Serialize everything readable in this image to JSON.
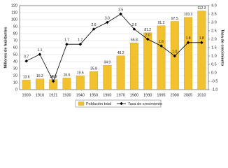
{
  "chart_data": {
    "type": "bar-line",
    "categories": [
      "1900",
      "1910",
      "1921",
      "1930",
      "1940",
      "1950",
      "1960",
      "1970",
      "1980",
      "1990",
      "1995",
      "2000",
      "2005",
      "2010"
    ],
    "series": [
      {
        "name": "Población total",
        "color": "#f2c12e",
        "values": [
          13.6,
          15.2,
          14.3,
          16.6,
          19.6,
          25.8,
          34.9,
          48.2,
          66.8,
          81.2,
          91.2,
          97.5,
          103.3,
          112.3
        ]
      },
      {
        "name": "Tasa de crecimiento",
        "color": "#000000",
        "axis": "y2",
        "values": [
          0.7,
          1.1,
          -0.5,
          1.7,
          1.7,
          2.6,
          3.0,
          3.5,
          2.6,
          2.0,
          1.6,
          1.0,
          1.8,
          1.8
        ],
        "value_labels": [
          "0.7",
          "1.1",
          "-0.5",
          "1.7",
          "1.7",
          "2.6",
          "3.0",
          "3.5",
          "2.6",
          "2.0",
          "1.6",
          "1.0",
          "1.8",
          "1.8"
        ]
      }
    ],
    "ylabel": "Millones de habitantes",
    "y2label": "Tasa de crecimiento",
    "ylim": [
      0,
      120
    ],
    "yticks": [
      0,
      10,
      20,
      30,
      40,
      50,
      60,
      70,
      80,
      90,
      100,
      110,
      120
    ],
    "y2lim": [
      -1,
      4
    ],
    "y2ticks": [
      {
        "value": -1,
        "label": "-1.0"
      },
      -0.5,
      {
        "value": 0,
        "label": "0.0"
      },
      0.5,
      {
        "value": 1,
        "label": "1.0"
      },
      1.5,
      {
        "value": 2,
        "label": "2.0"
      },
      2.5,
      {
        "value": 3,
        "label": "3.0"
      },
      3.5,
      {
        "value": 4,
        "label": "4.0"
      }
    ],
    "grid": true,
    "legend": "bottom"
  }
}
